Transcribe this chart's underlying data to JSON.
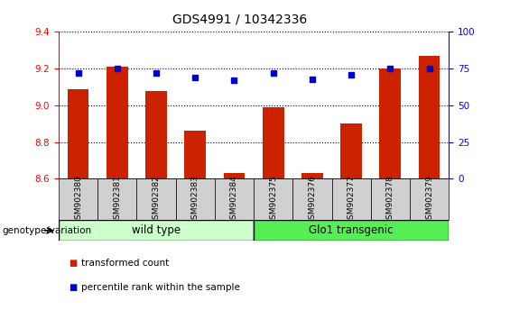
{
  "title": "GDS4991 / 10342336",
  "samples": [
    "GSM902380",
    "GSM902381",
    "GSM902382",
    "GSM902383",
    "GSM902384",
    "GSM902375",
    "GSM902376",
    "GSM902377",
    "GSM902378",
    "GSM902379"
  ],
  "bar_values": [
    9.09,
    9.21,
    9.08,
    8.86,
    8.63,
    8.99,
    8.63,
    8.9,
    9.2,
    9.27
  ],
  "percentile_values": [
    72,
    75,
    72,
    69,
    67,
    72,
    68,
    71,
    75,
    75
  ],
  "ylim_left": [
    8.6,
    9.4
  ],
  "ylim_right": [
    0,
    100
  ],
  "yticks_left": [
    8.6,
    8.8,
    9.0,
    9.2,
    9.4
  ],
  "yticks_right": [
    0,
    25,
    50,
    75,
    100
  ],
  "bar_color": "#cc2200",
  "marker_color": "#0000cc",
  "group1_label": "wild type",
  "group2_label": "Glo1 transgenic",
  "group1_indices": [
    0,
    1,
    2,
    3,
    4
  ],
  "group2_indices": [
    5,
    6,
    7,
    8,
    9
  ],
  "group1_color": "#ccffcc",
  "group2_color": "#55ee55",
  "legend_bar_label": "transformed count",
  "legend_marker_label": "percentile rank within the sample",
  "genotype_label": "genotype/variation"
}
